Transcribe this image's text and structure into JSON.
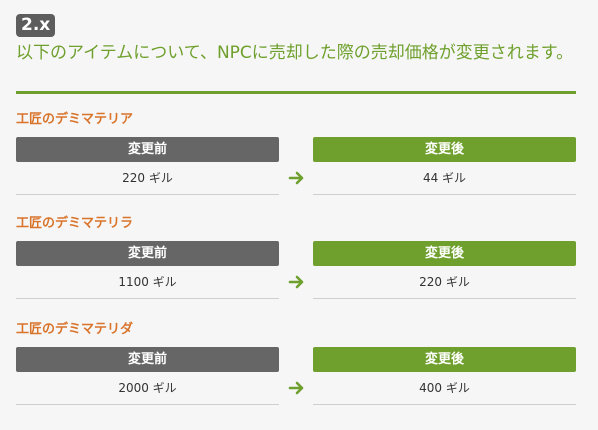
{
  "badge": "2.x",
  "heading": "以下のアイテムについて、NPCに売却した際の売却価格が変更されます。",
  "labels": {
    "before": "変更前",
    "after": "変更後"
  },
  "colors": {
    "green": "#6fa02d",
    "orange": "#d9742b",
    "gray": "#666666"
  },
  "items": [
    {
      "name": "工匠のデミマテリア",
      "before": "220 ギル",
      "after": "44 ギル"
    },
    {
      "name": "工匠のデミマテリラ",
      "before": "1100 ギル",
      "after": "220 ギル"
    },
    {
      "name": "工匠のデミマテリダ",
      "before": "2000 ギル",
      "after": "400 ギル"
    }
  ]
}
